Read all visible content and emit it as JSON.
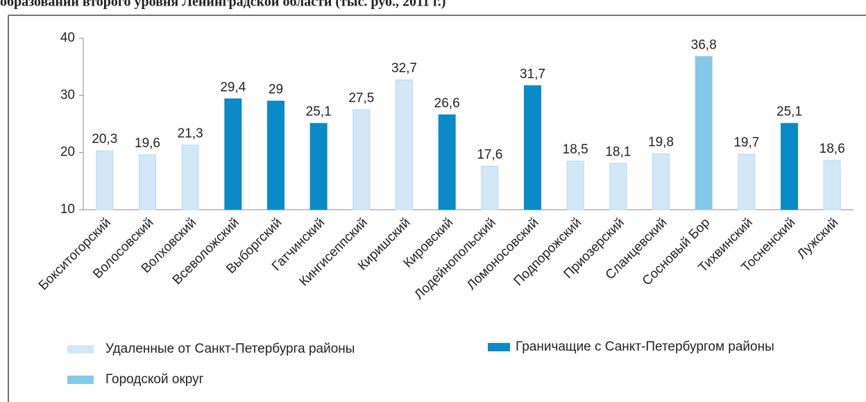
{
  "chart_data": {
    "type": "bar",
    "title": "образований второго уровня Ленинградской области (тыс. руб., 2011 г.)",
    "categories": [
      "Бокситогорский",
      "Волосовский",
      "Волховский",
      "Всеволожский",
      "Выборгский",
      "Гатчинский",
      "Кингисеппский",
      "Киришский",
      "Кировский",
      "Лодейнопольский",
      "Ломоносовский",
      "Подпорожский",
      "Приозерский",
      "Сланцевский",
      "Сосновый Бор",
      "Тихвинский",
      "Тосненский",
      "Лужский"
    ],
    "series": [
      {
        "name": "Удаленные от Санкт-Петербурга районы",
        "color": "#d3e8f6",
        "values": [
          20.3,
          19.6,
          21.3,
          null,
          null,
          null,
          27.5,
          32.7,
          null,
          17.6,
          null,
          18.5,
          18.1,
          19.8,
          null,
          19.7,
          null,
          18.6
        ],
        "value_labels": [
          "20,3",
          "19,6",
          "21,3",
          null,
          null,
          null,
          "27,5",
          "32,7",
          null,
          "17,6",
          null,
          "18,5",
          "18,1",
          "19,8",
          null,
          "19,7",
          null,
          "18,6"
        ]
      },
      {
        "name": "Граничащие с Санкт-Петербургом районы",
        "color": "#0a8bc7",
        "values": [
          null,
          null,
          null,
          29.4,
          29,
          25.1,
          null,
          null,
          26.6,
          null,
          31.7,
          null,
          null,
          null,
          null,
          null,
          25.1,
          null
        ],
        "value_labels": [
          null,
          null,
          null,
          "29,4",
          "29",
          "25,1",
          null,
          null,
          "26,6",
          null,
          "31,7",
          null,
          null,
          null,
          null,
          null,
          "25,1",
          null
        ]
      },
      {
        "name": "Городской округ",
        "color": "#86c8e8",
        "values": [
          null,
          null,
          null,
          null,
          null,
          null,
          null,
          null,
          null,
          null,
          null,
          null,
          null,
          null,
          36.8,
          null,
          null,
          null
        ],
        "value_labels": [
          null,
          null,
          null,
          null,
          null,
          null,
          null,
          null,
          null,
          null,
          null,
          null,
          null,
          null,
          "36,8",
          null,
          null,
          null
        ]
      }
    ],
    "ylim": [
      10,
      40
    ],
    "yticks": [
      10,
      20,
      30,
      40
    ],
    "grid": false
  }
}
